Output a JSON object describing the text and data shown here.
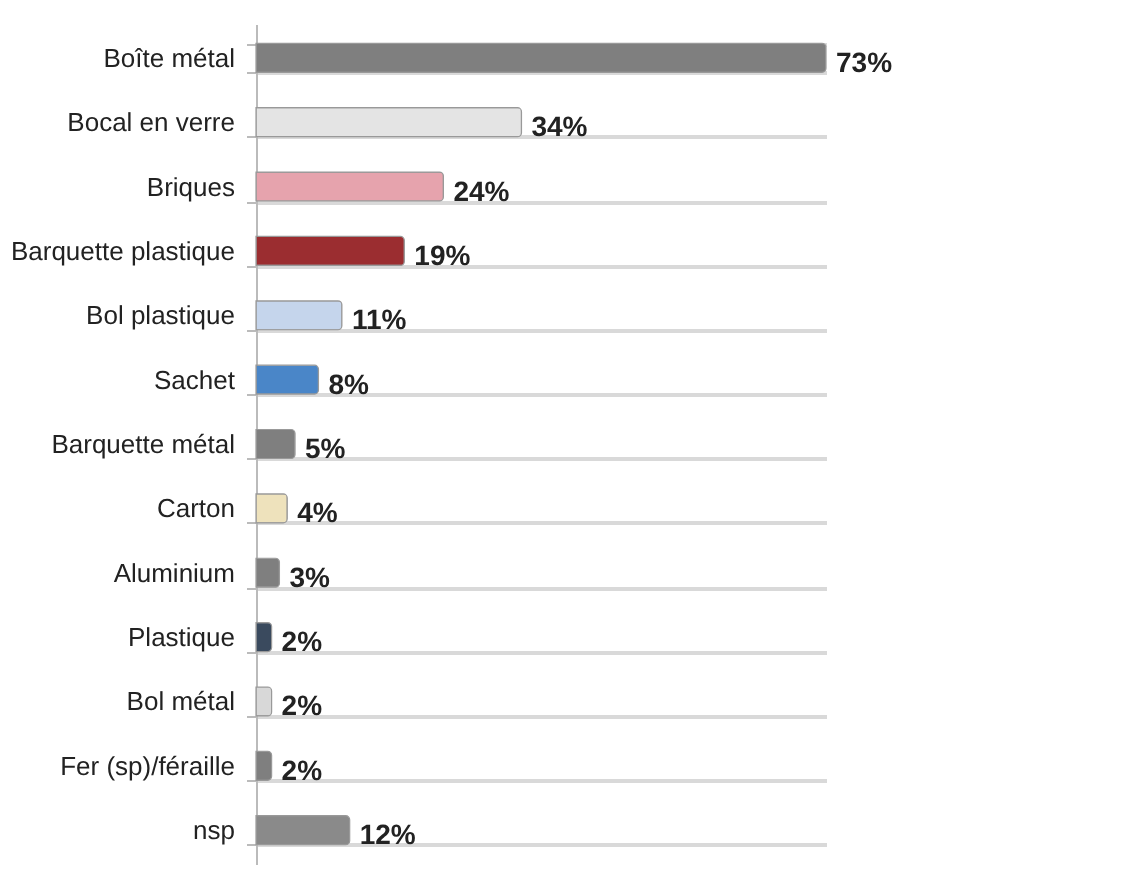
{
  "chart_data": {
    "type": "bar",
    "orientation": "horizontal",
    "grid": "y",
    "categories": [
      "Boîte métal",
      "Bocal en verre",
      "Briques",
      "Barquette plastique",
      "Bol plastique",
      "Sachet",
      "Barquette métal",
      "Carton",
      "Aluminium",
      "Plastique",
      "Bol métal",
      "Fer (sp)/féraille",
      "nsp"
    ],
    "values": [
      73,
      34,
      24,
      19,
      11,
      8,
      5,
      4,
      3,
      2,
      2,
      2,
      12
    ],
    "colors": [
      "#7f7f7f",
      "#e4e4e4",
      "#e6a3ad",
      "#9b2d30",
      "#c5d5ec",
      "#4a86c8",
      "#7f7f7f",
      "#eee2bc",
      "#7f7f7f",
      "#3a4a5e",
      "#d8d8d8",
      "#7f7f7f",
      "#8a8a8a"
    ],
    "value_labels": [
      "73%",
      "34%",
      "24%",
      "19%",
      "11%",
      "8%",
      "5%",
      "4%",
      "3%",
      "2%",
      "2%",
      "2%",
      "12%"
    ]
  }
}
